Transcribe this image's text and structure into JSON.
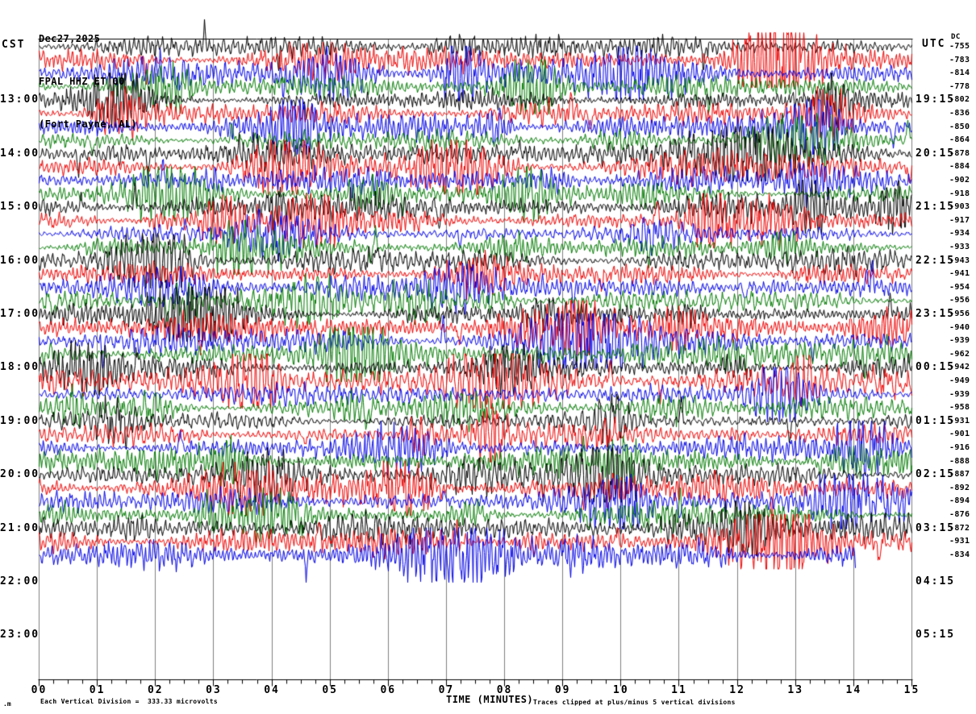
{
  "title": {
    "date": "Dec27,2025",
    "station": "FPAL HHZ ET 00",
    "location": "(Fort Payne, AL)"
  },
  "left_axis": {
    "header": "CST",
    "labels": [
      {
        "row": 4,
        "text": "13:00"
      },
      {
        "row": 8,
        "text": "14:00"
      },
      {
        "row": 12,
        "text": "15:00"
      },
      {
        "row": 16,
        "text": "16:00"
      },
      {
        "row": 20,
        "text": "17:00"
      },
      {
        "row": 24,
        "text": "18:00"
      },
      {
        "row": 28,
        "text": "19:00"
      },
      {
        "row": 32,
        "text": "20:00"
      },
      {
        "row": 36,
        "text": "21:00"
      },
      {
        "row": 40,
        "text": "22:00"
      },
      {
        "row": 44,
        "text": "23:00"
      }
    ]
  },
  "right_axis": {
    "header": "UTC",
    "dc_header": "DC",
    "labels": [
      {
        "row": 4,
        "text": "19:15"
      },
      {
        "row": 8,
        "text": "20:15"
      },
      {
        "row": 12,
        "text": "21:15"
      },
      {
        "row": 16,
        "text": "22:15"
      },
      {
        "row": 20,
        "text": "23:15"
      },
      {
        "row": 24,
        "text": "00:15"
      },
      {
        "row": 28,
        "text": "01:15"
      },
      {
        "row": 32,
        "text": "02:15"
      },
      {
        "row": 36,
        "text": "03:15"
      },
      {
        "row": 40,
        "text": "04:15"
      },
      {
        "row": 44,
        "text": "05:15"
      }
    ]
  },
  "x_axis": {
    "title": "TIME (MINUTES)",
    "tick_labels": [
      "00",
      "01",
      "02",
      "03",
      "04",
      "05",
      "06",
      "07",
      "08",
      "09",
      "10",
      "11",
      "12",
      "13",
      "14",
      "15"
    ]
  },
  "footer": {
    "scale_note": "Each Vertical Division =  333.33 microvolts",
    "clip_note": "Traces clipped at plus/minus 5 vertical divisions",
    "corner_mark": ".m"
  },
  "colors": {
    "trace_cycle": [
      "#000000",
      "#ee0000",
      "#0000e6",
      "#007a00"
    ],
    "grid": "#7f7f7f",
    "axis": "#000000",
    "background": "#ffffff"
  },
  "chart_data": {
    "type": "line",
    "subtype": "helicorder-seismogram",
    "station": "FPAL HHZ ET 00",
    "station_location": "Fort Payne, AL",
    "date": "Dec27,2025",
    "local_timezone": "CST",
    "minutes_per_row": 15,
    "rows_per_hour": 4,
    "first_row_start_cst": "12:00",
    "num_trace_rows": 39,
    "total_row_slots": 48,
    "last_row_data_fraction": 0.935,
    "row_color_cycle": [
      "black",
      "red",
      "blue",
      "green"
    ],
    "x_range_minutes": [
      0,
      15
    ],
    "vertical_division_microvolts": 333.33,
    "clip_divisions": 5,
    "dc_offsets": [
      -755,
      -783,
      -814,
      -778,
      -802,
      -836,
      -850,
      -864,
      -878,
      -884,
      -902,
      -918,
      -903,
      -917,
      -934,
      -933,
      -943,
      -941,
      -954,
      -956,
      -956,
      -940,
      -939,
      -962,
      -942,
      -949,
      -939,
      -958,
      -931,
      -901,
      -916,
      -888,
      -887,
      -892,
      -894,
      -876,
      -872,
      -931,
      -834
    ]
  }
}
